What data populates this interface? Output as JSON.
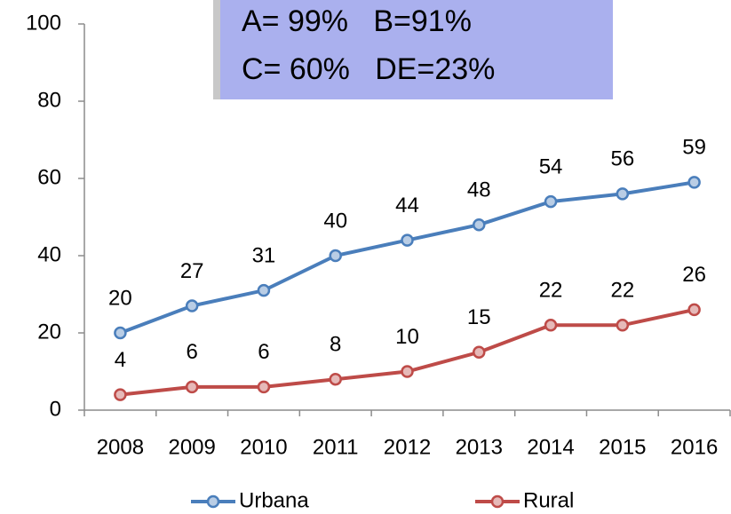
{
  "chart_data": {
    "type": "line",
    "annotations": [
      "A= 99%   B=91%",
      "C= 60%   DE=23%"
    ],
    "categories": [
      "2008",
      "2009",
      "2010",
      "2011",
      "2012",
      "2013",
      "2014",
      "2015",
      "2016"
    ],
    "series": [
      {
        "name": "Urbana",
        "color": "#4a7ebb",
        "values": [
          20,
          27,
          31,
          40,
          44,
          48,
          54,
          56,
          59
        ]
      },
      {
        "name": "Rural",
        "color": "#be4b48",
        "values": [
          4,
          6,
          6,
          8,
          10,
          15,
          22,
          22,
          26
        ]
      }
    ],
    "ylim": [
      0,
      100
    ],
    "yticks": [
      0,
      20,
      40,
      60,
      80,
      100
    ],
    "grid": false,
    "legend": "bottom"
  }
}
